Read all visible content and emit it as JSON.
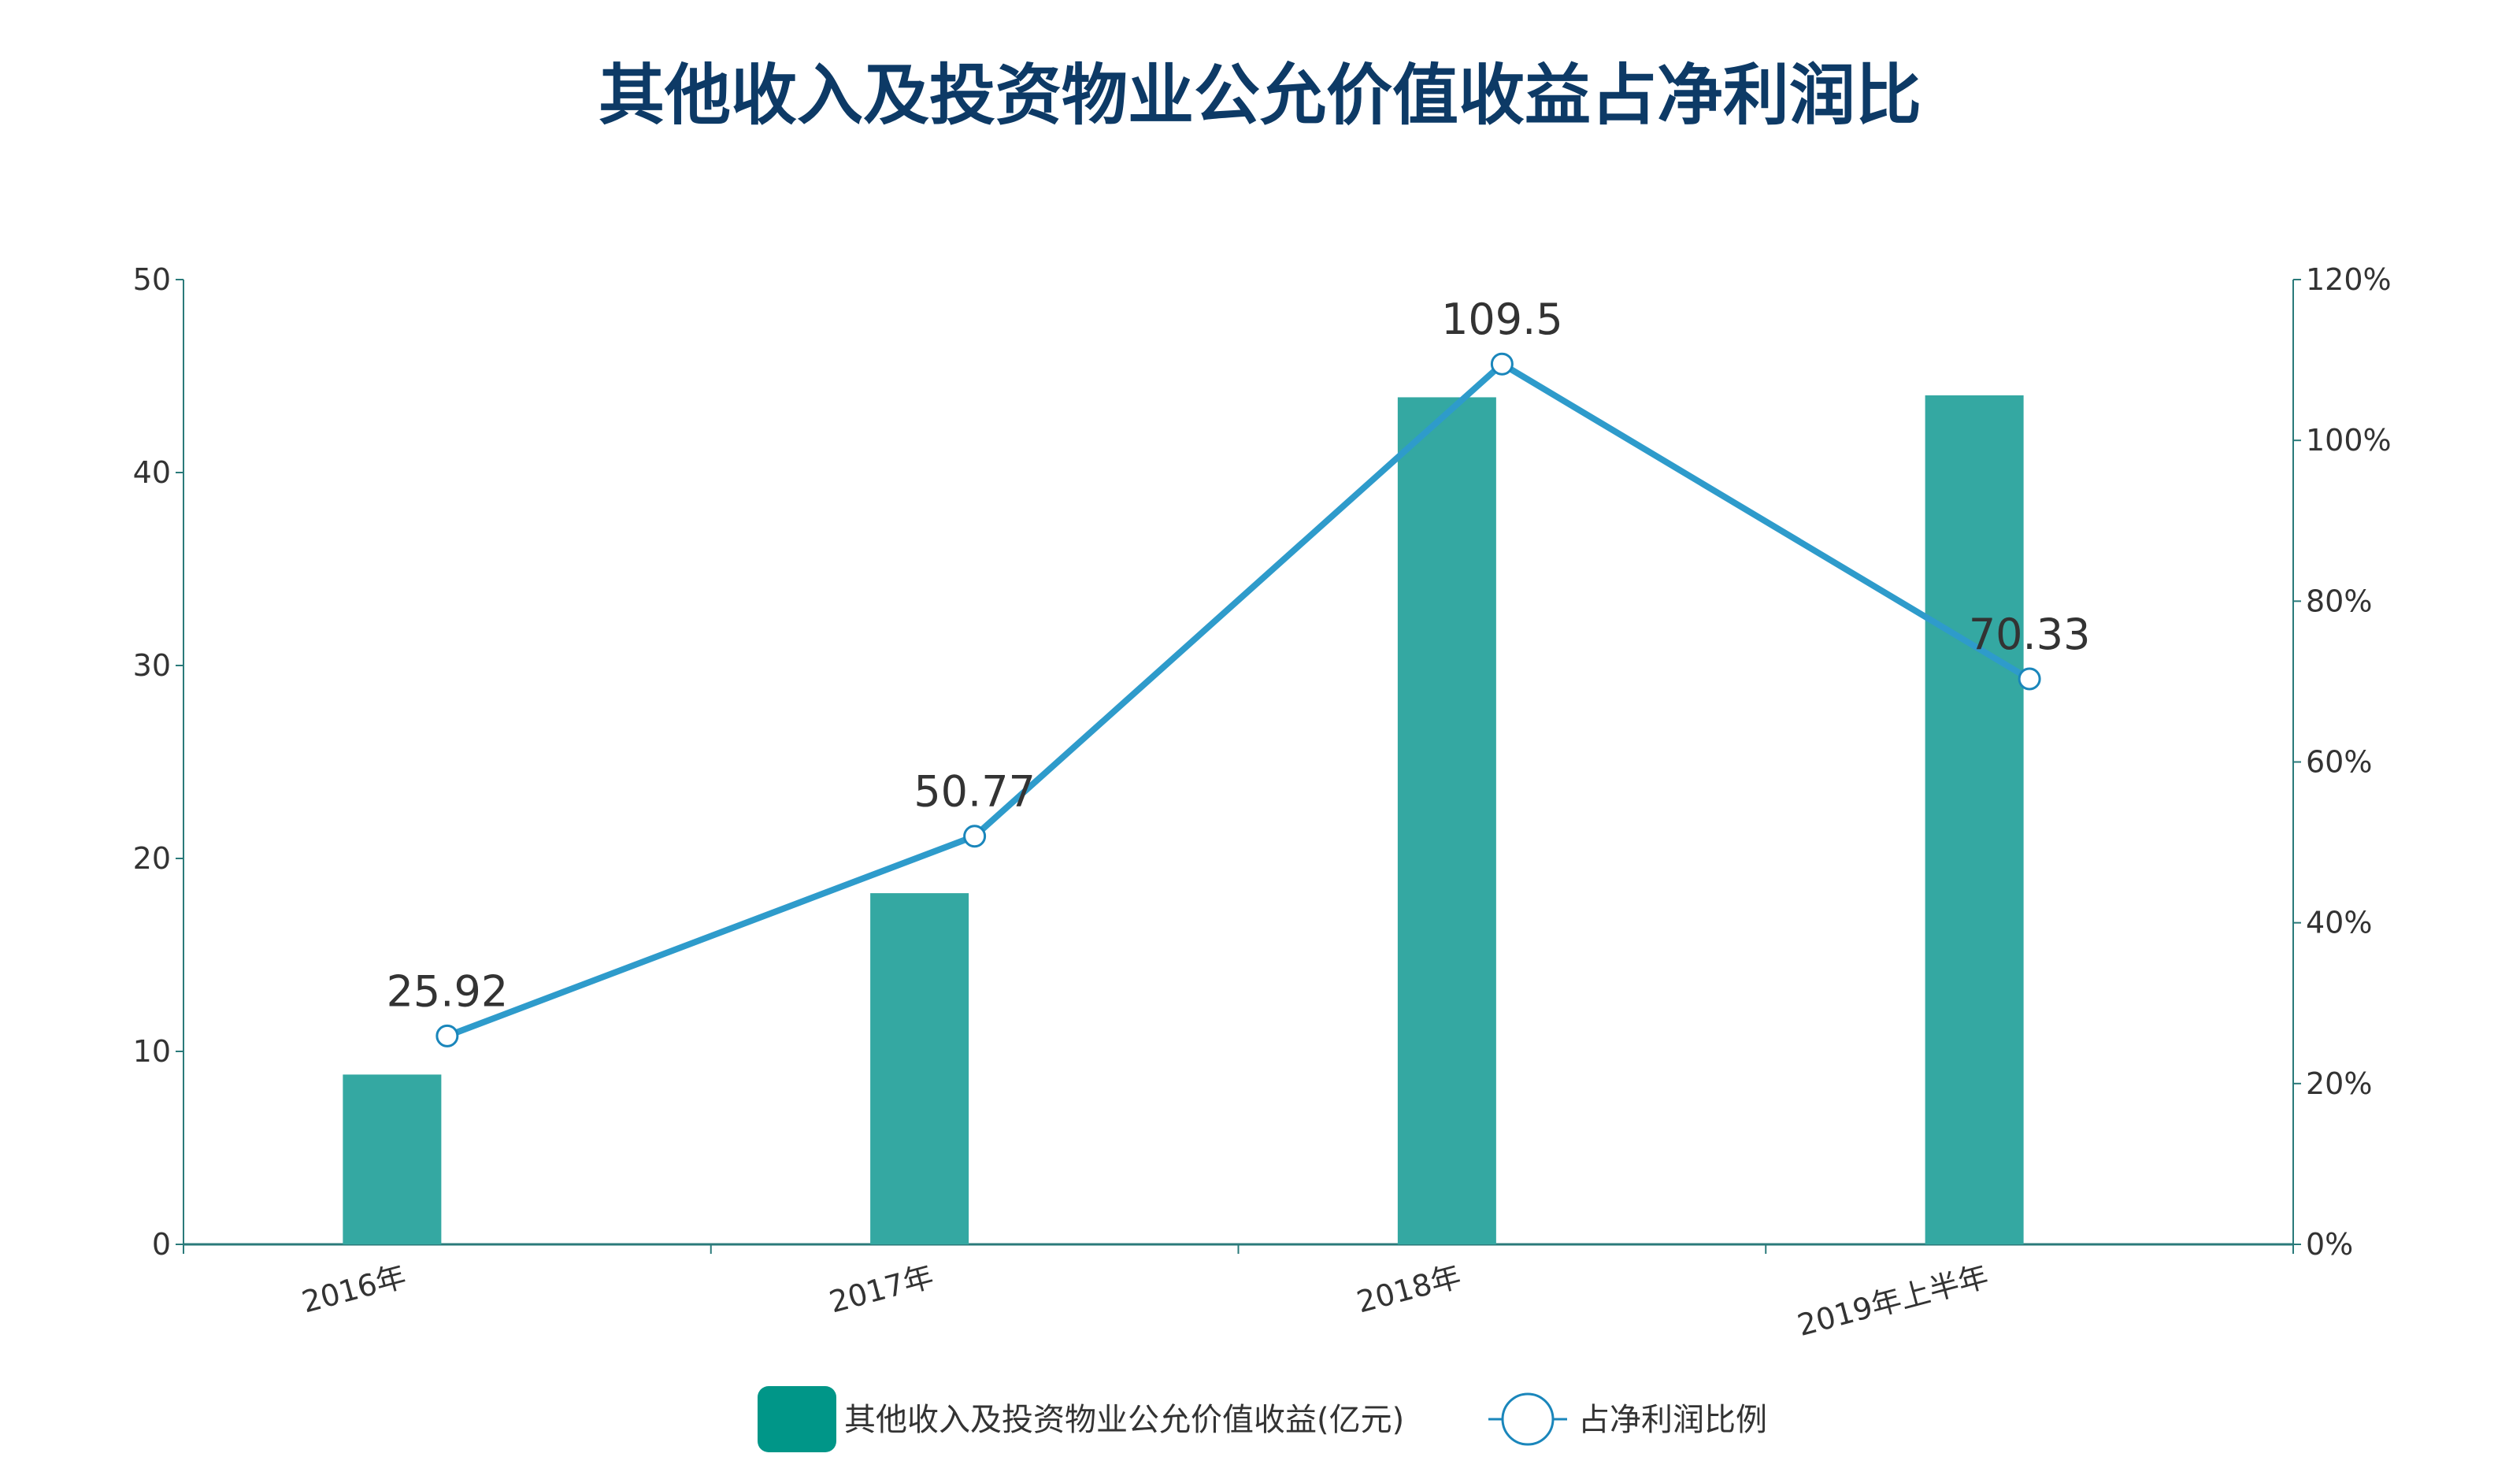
{
  "chart_data": {
    "type": "bar+line",
    "title": "其他收入及投资物业公允价值收益占净利润比",
    "categories": [
      "2016年",
      "2017年",
      "2018年",
      "2019年上半年"
    ],
    "series": [
      {
        "name": "其他收入及投资物业公允价值收益(亿元)",
        "type": "bar",
        "axis": "left",
        "values": [
          8.8,
          18.2,
          43.9,
          44.0
        ],
        "color": "#009688"
      },
      {
        "name": "占净利润比例",
        "type": "line",
        "axis": "right",
        "values": [
          25.92,
          50.77,
          109.5,
          70.33
        ],
        "labels": [
          "25.92",
          "50.77",
          "109.5",
          "70.33"
        ],
        "color": "#2e9bcb"
      }
    ],
    "y_left": {
      "ylim": [
        0,
        50
      ],
      "ticks": [
        "0",
        "10",
        "20",
        "30",
        "40",
        "50"
      ]
    },
    "y_right": {
      "ylim": [
        0,
        120
      ],
      "ticks": [
        "0%",
        "20%",
        "40%",
        "60%",
        "80%",
        "100%",
        "120%"
      ]
    },
    "legend_position": "bottom",
    "grid": false
  }
}
